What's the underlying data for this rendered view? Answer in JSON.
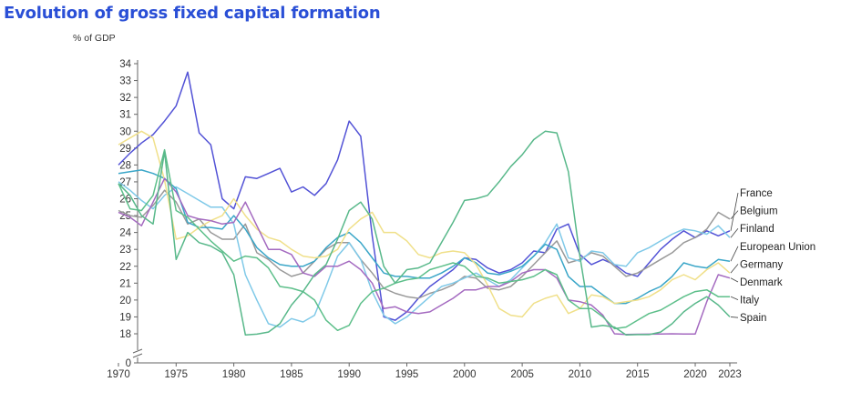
{
  "title": "Evolution of gross fixed capital formation",
  "chart_data": {
    "type": "line",
    "title": "Evolution of gross fixed capital formation",
    "ylabel": "% of GDP",
    "xlabel": "",
    "ylim": [
      0,
      34
    ],
    "axis_break_below": 18,
    "x_ticks": [
      "1970",
      "1975",
      "1980",
      "1985",
      "1990",
      "1995",
      "2000",
      "2005",
      "2010",
      "2015",
      "2020",
      "2023"
    ],
    "y_ticks": [
      "0",
      "18",
      "19",
      "20",
      "21",
      "22",
      "23",
      "24",
      "25",
      "26",
      "27",
      "28",
      "29",
      "30",
      "31",
      "32",
      "33",
      "34"
    ],
    "x": [
      1970,
      1971,
      1972,
      1973,
      1974,
      1975,
      1976,
      1977,
      1978,
      1979,
      1980,
      1981,
      1982,
      1983,
      1984,
      1985,
      1986,
      1987,
      1988,
      1989,
      1990,
      1991,
      1992,
      1993,
      1994,
      1995,
      1996,
      1997,
      1998,
      1999,
      2000,
      2001,
      2002,
      2003,
      2004,
      2005,
      2006,
      2007,
      2008,
      2009,
      2010,
      2011,
      2012,
      2013,
      2014,
      2015,
      2016,
      2017,
      2018,
      2019,
      2020,
      2021,
      2022,
      2023
    ],
    "series": [
      {
        "name": "France",
        "color": "#5252d6",
        "values": [
          28.0,
          28.7,
          29.3,
          29.8,
          30.6,
          31.5,
          33.5,
          29.9,
          29.2,
          26.0,
          25.4,
          27.3,
          27.2,
          27.5,
          27.8,
          26.4,
          26.7,
          26.2,
          26.9,
          28.3,
          30.6,
          29.7,
          23.8,
          19.0,
          18.8,
          19.3,
          20.1,
          20.8,
          21.3,
          21.8,
          22.5,
          22.4,
          21.9,
          21.6,
          21.8,
          22.2,
          22.9,
          22.8,
          24.2,
          24.5,
          22.7,
          22.1,
          22.4,
          22.1,
          21.6,
          21.4,
          22.2,
          23.0,
          23.6,
          24.1,
          23.7,
          24.1,
          23.8,
          24.1
        ]
      },
      {
        "name": "Belgium",
        "color": "#999999",
        "values": [
          25.3,
          25.0,
          24.9,
          25.6,
          26.5,
          25.8,
          24.5,
          24.8,
          24.0,
          23.6,
          23.6,
          24.5,
          22.8,
          22.4,
          21.8,
          21.4,
          21.6,
          22.3,
          23.0,
          23.4,
          23.4,
          22.4,
          21.6,
          20.7,
          20.4,
          20.2,
          20.1,
          20.4,
          20.6,
          20.9,
          21.4,
          21.3,
          20.7,
          20.6,
          20.8,
          21.4,
          22.1,
          22.8,
          23.5,
          22.2,
          22.4,
          22.8,
          22.6,
          22.0,
          21.4,
          21.6,
          22.0,
          22.4,
          22.8,
          23.4,
          23.7,
          24.2,
          25.2,
          24.8
        ]
      },
      {
        "name": "Finland",
        "color": "#7fc9e8",
        "values": [
          27.0,
          26.5,
          25.9,
          25.4,
          26.2,
          26.7,
          26.3,
          25.9,
          25.5,
          25.5,
          24.5,
          21.5,
          20.0,
          18.6,
          18.4,
          18.9,
          18.7,
          19.1,
          20.8,
          22.6,
          23.4,
          22.4,
          20.5,
          19.1,
          18.6,
          19.0,
          19.6,
          20.2,
          20.8,
          21.0,
          21.3,
          21.6,
          21.2,
          20.8,
          21.2,
          21.9,
          22.6,
          23.4,
          24.5,
          22.5,
          22.3,
          22.9,
          22.8,
          22.1,
          22.0,
          22.8,
          23.1,
          23.5,
          23.9,
          24.2,
          24.1,
          23.9,
          24.4,
          23.7
        ]
      },
      {
        "name": "European Union",
        "color": "#3aa6c8",
        "values": [
          27.5,
          27.6,
          27.7,
          27.5,
          27.2,
          26.6,
          24.6,
          24.3,
          24.3,
          24.2,
          25.0,
          24.2,
          23.1,
          22.5,
          22.1,
          22.0,
          22.0,
          22.3,
          23.1,
          23.7,
          24.0,
          23.4,
          22.5,
          21.6,
          21.4,
          21.4,
          21.3,
          21.3,
          21.6,
          22.0,
          22.5,
          22.2,
          21.6,
          21.5,
          21.7,
          22.0,
          22.6,
          23.3,
          23.0,
          21.4,
          20.8,
          20.8,
          20.3,
          19.8,
          19.8,
          20.1,
          20.5,
          20.8,
          21.4,
          22.2,
          22.0,
          21.9,
          22.4,
          22.3
        ]
      },
      {
        "name": "Germany",
        "color": "#f0e08a",
        "values": [
          29.2,
          29.6,
          30.0,
          29.6,
          27.1,
          23.6,
          23.8,
          24.3,
          24.7,
          25.0,
          26.0,
          25.0,
          24.2,
          23.7,
          23.5,
          23.0,
          22.6,
          22.5,
          22.6,
          23.0,
          24.2,
          24.8,
          25.2,
          24.0,
          24.0,
          23.5,
          22.7,
          22.5,
          22.8,
          22.9,
          22.8,
          22.1,
          20.9,
          19.5,
          19.1,
          19.0,
          19.8,
          20.1,
          20.3,
          19.2,
          19.5,
          20.3,
          20.2,
          19.8,
          19.9,
          20.0,
          20.2,
          20.6,
          21.2,
          21.5,
          21.2,
          21.8,
          22.2,
          21.6
        ]
      },
      {
        "name": "Denmark",
        "color": "#a46ac0",
        "values": [
          25.2,
          24.9,
          24.4,
          25.8,
          27.2,
          26.4,
          25.0,
          24.8,
          24.7,
          24.5,
          24.6,
          25.8,
          24.4,
          23.0,
          23.0,
          22.7,
          21.6,
          21.4,
          22.0,
          22.0,
          22.3,
          21.8,
          21.0,
          19.5,
          19.6,
          19.3,
          19.2,
          19.3,
          19.7,
          20.1,
          20.6,
          20.6,
          20.8,
          20.8,
          21.1,
          21.6,
          21.8,
          21.8,
          21.3,
          20.0,
          19.9,
          19.7,
          19.1,
          18.0,
          17.6,
          17.7,
          17.8,
          17.9,
          18.0,
          17.9,
          17.9,
          19.9,
          21.5,
          21.3
        ]
      },
      {
        "name": "Italy",
        "color": "#5dbf8a",
        "values": [
          26.9,
          25.4,
          25.3,
          26.2,
          28.9,
          25.3,
          24.9,
          24.2,
          23.5,
          22.9,
          22.3,
          22.6,
          22.5,
          21.9,
          20.8,
          20.7,
          20.5,
          20.0,
          18.8,
          18.2,
          18.5,
          19.8,
          20.5,
          20.7,
          21.0,
          21.2,
          21.3,
          21.8,
          22.0,
          22.2,
          22.0,
          21.4,
          21.3,
          21.0,
          21.1,
          21.2,
          21.4,
          21.8,
          21.5,
          20.0,
          19.5,
          19.5,
          19.0,
          18.3,
          18.4,
          18.8,
          19.2,
          19.4,
          19.8,
          20.2,
          20.5,
          20.6,
          20.2,
          20.2
        ]
      },
      {
        "name": "Spain",
        "color": "#58b88a",
        "values": [
          26.9,
          26.2,
          25.0,
          24.5,
          28.8,
          22.4,
          24.0,
          23.4,
          23.2,
          22.8,
          21.5,
          17.3,
          17.8,
          18.1,
          18.6,
          19.7,
          20.5,
          21.5,
          22.1,
          23.6,
          25.3,
          25.8,
          24.8,
          22.0,
          21.0,
          21.8,
          21.9,
          22.2,
          23.4,
          24.6,
          25.9,
          26.0,
          26.2,
          27.0,
          27.9,
          28.6,
          29.5,
          30.0,
          29.9,
          27.6,
          22.6,
          18.4,
          18.5,
          18.4,
          17.3,
          17.5,
          17.5,
          18.1,
          18.6,
          19.3,
          19.8,
          20.2,
          19.7,
          19.0
        ]
      }
    ],
    "legend_placement": "right-end labels",
    "grid": false
  }
}
